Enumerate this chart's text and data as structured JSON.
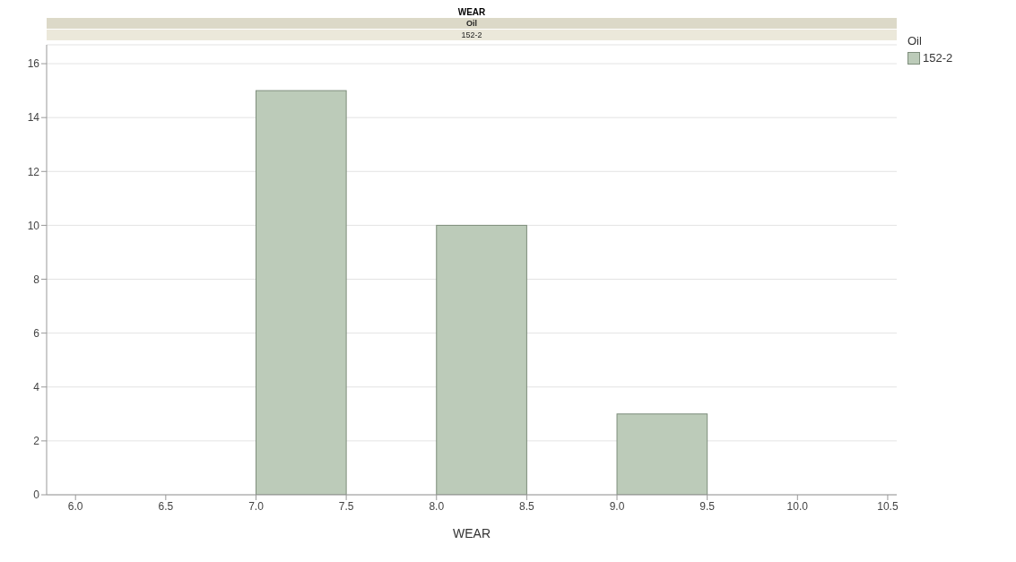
{
  "chart_data": {
    "type": "histogram",
    "title": "WEAR",
    "subtitle": "Oil",
    "annotations": [
      "152-2"
    ],
    "xlabel": "WEAR",
    "legend_title": "Oil",
    "bins": [
      7.0,
      7.5,
      8.0,
      8.5,
      9.0,
      9.5
    ],
    "series": [
      {
        "name": "152-2",
        "color": "#bccbb9",
        "values": [
          15,
          0,
          10,
          0,
          3
        ]
      }
    ],
    "xlim": [
      5.84,
      10.55
    ],
    "xticks": [
      {
        "value": 6,
        "label": "6.0"
      },
      {
        "value": 6.5,
        "label": "6.5"
      },
      {
        "value": 7,
        "label": "7.0"
      },
      {
        "value": 7.5,
        "label": "7.5"
      },
      {
        "value": 8,
        "label": "8.0"
      },
      {
        "value": 8.5,
        "label": "8.5"
      },
      {
        "value": 9,
        "label": "9.0"
      },
      {
        "value": 9.5,
        "label": "9.5"
      },
      {
        "value": 10,
        "label": "10.0"
      },
      {
        "value": 10.5,
        "label": "10.5"
      }
    ],
    "ylim": [
      0,
      16.7
    ],
    "yticks": [
      0,
      2,
      4,
      6,
      8,
      10,
      12,
      14,
      16
    ],
    "grid": "y",
    "legend": "top right"
  }
}
